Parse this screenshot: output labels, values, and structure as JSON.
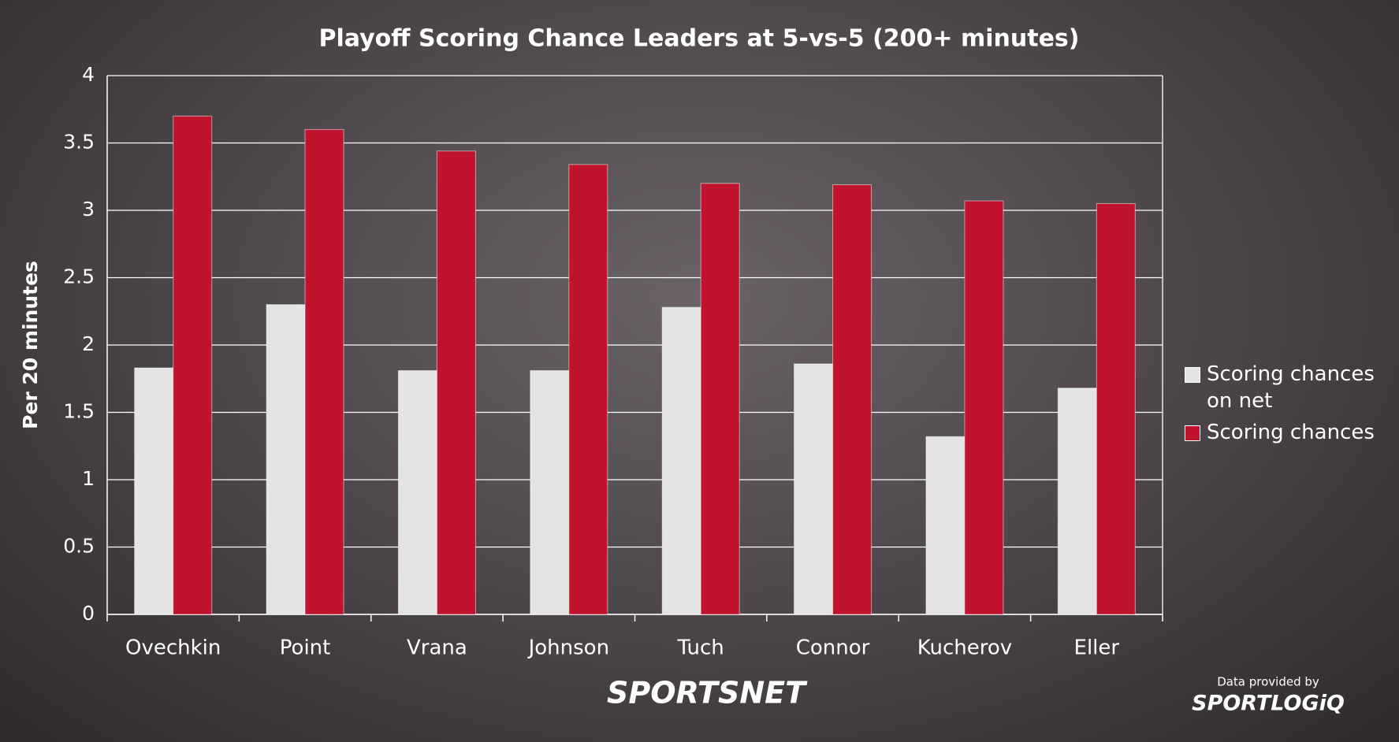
{
  "chart_data": {
    "type": "bar",
    "title": "Playoff Scoring Chance Leaders at 5-vs-5 (200+ minutes)",
    "y_label": "Per 20 minutes",
    "categories": [
      "Ovechkin",
      "Point",
      "Vrana",
      "Johnson",
      "Tuch",
      "Connor",
      "Kucherov",
      "Eller"
    ],
    "series": [
      {
        "name": "Scoring chances on net",
        "color": "#e4e4e4",
        "values": [
          1.83,
          2.3,
          1.81,
          1.81,
          2.28,
          1.86,
          1.32,
          1.68
        ]
      },
      {
        "name": "Scoring chances",
        "color": "#c0142e",
        "values": [
          3.7,
          3.6,
          3.44,
          3.34,
          3.2,
          3.19,
          3.07,
          3.05
        ]
      }
    ],
    "ylim": [
      0,
      4
    ],
    "yticks": [
      0,
      0.5,
      1,
      1.5,
      2,
      2.5,
      3,
      3.5,
      4
    ],
    "grid": true,
    "legend": "right"
  },
  "branding": {
    "broadcaster": "SPORTSNET",
    "credit": "Data provided by",
    "provider": "SPORTLOGiQ"
  }
}
